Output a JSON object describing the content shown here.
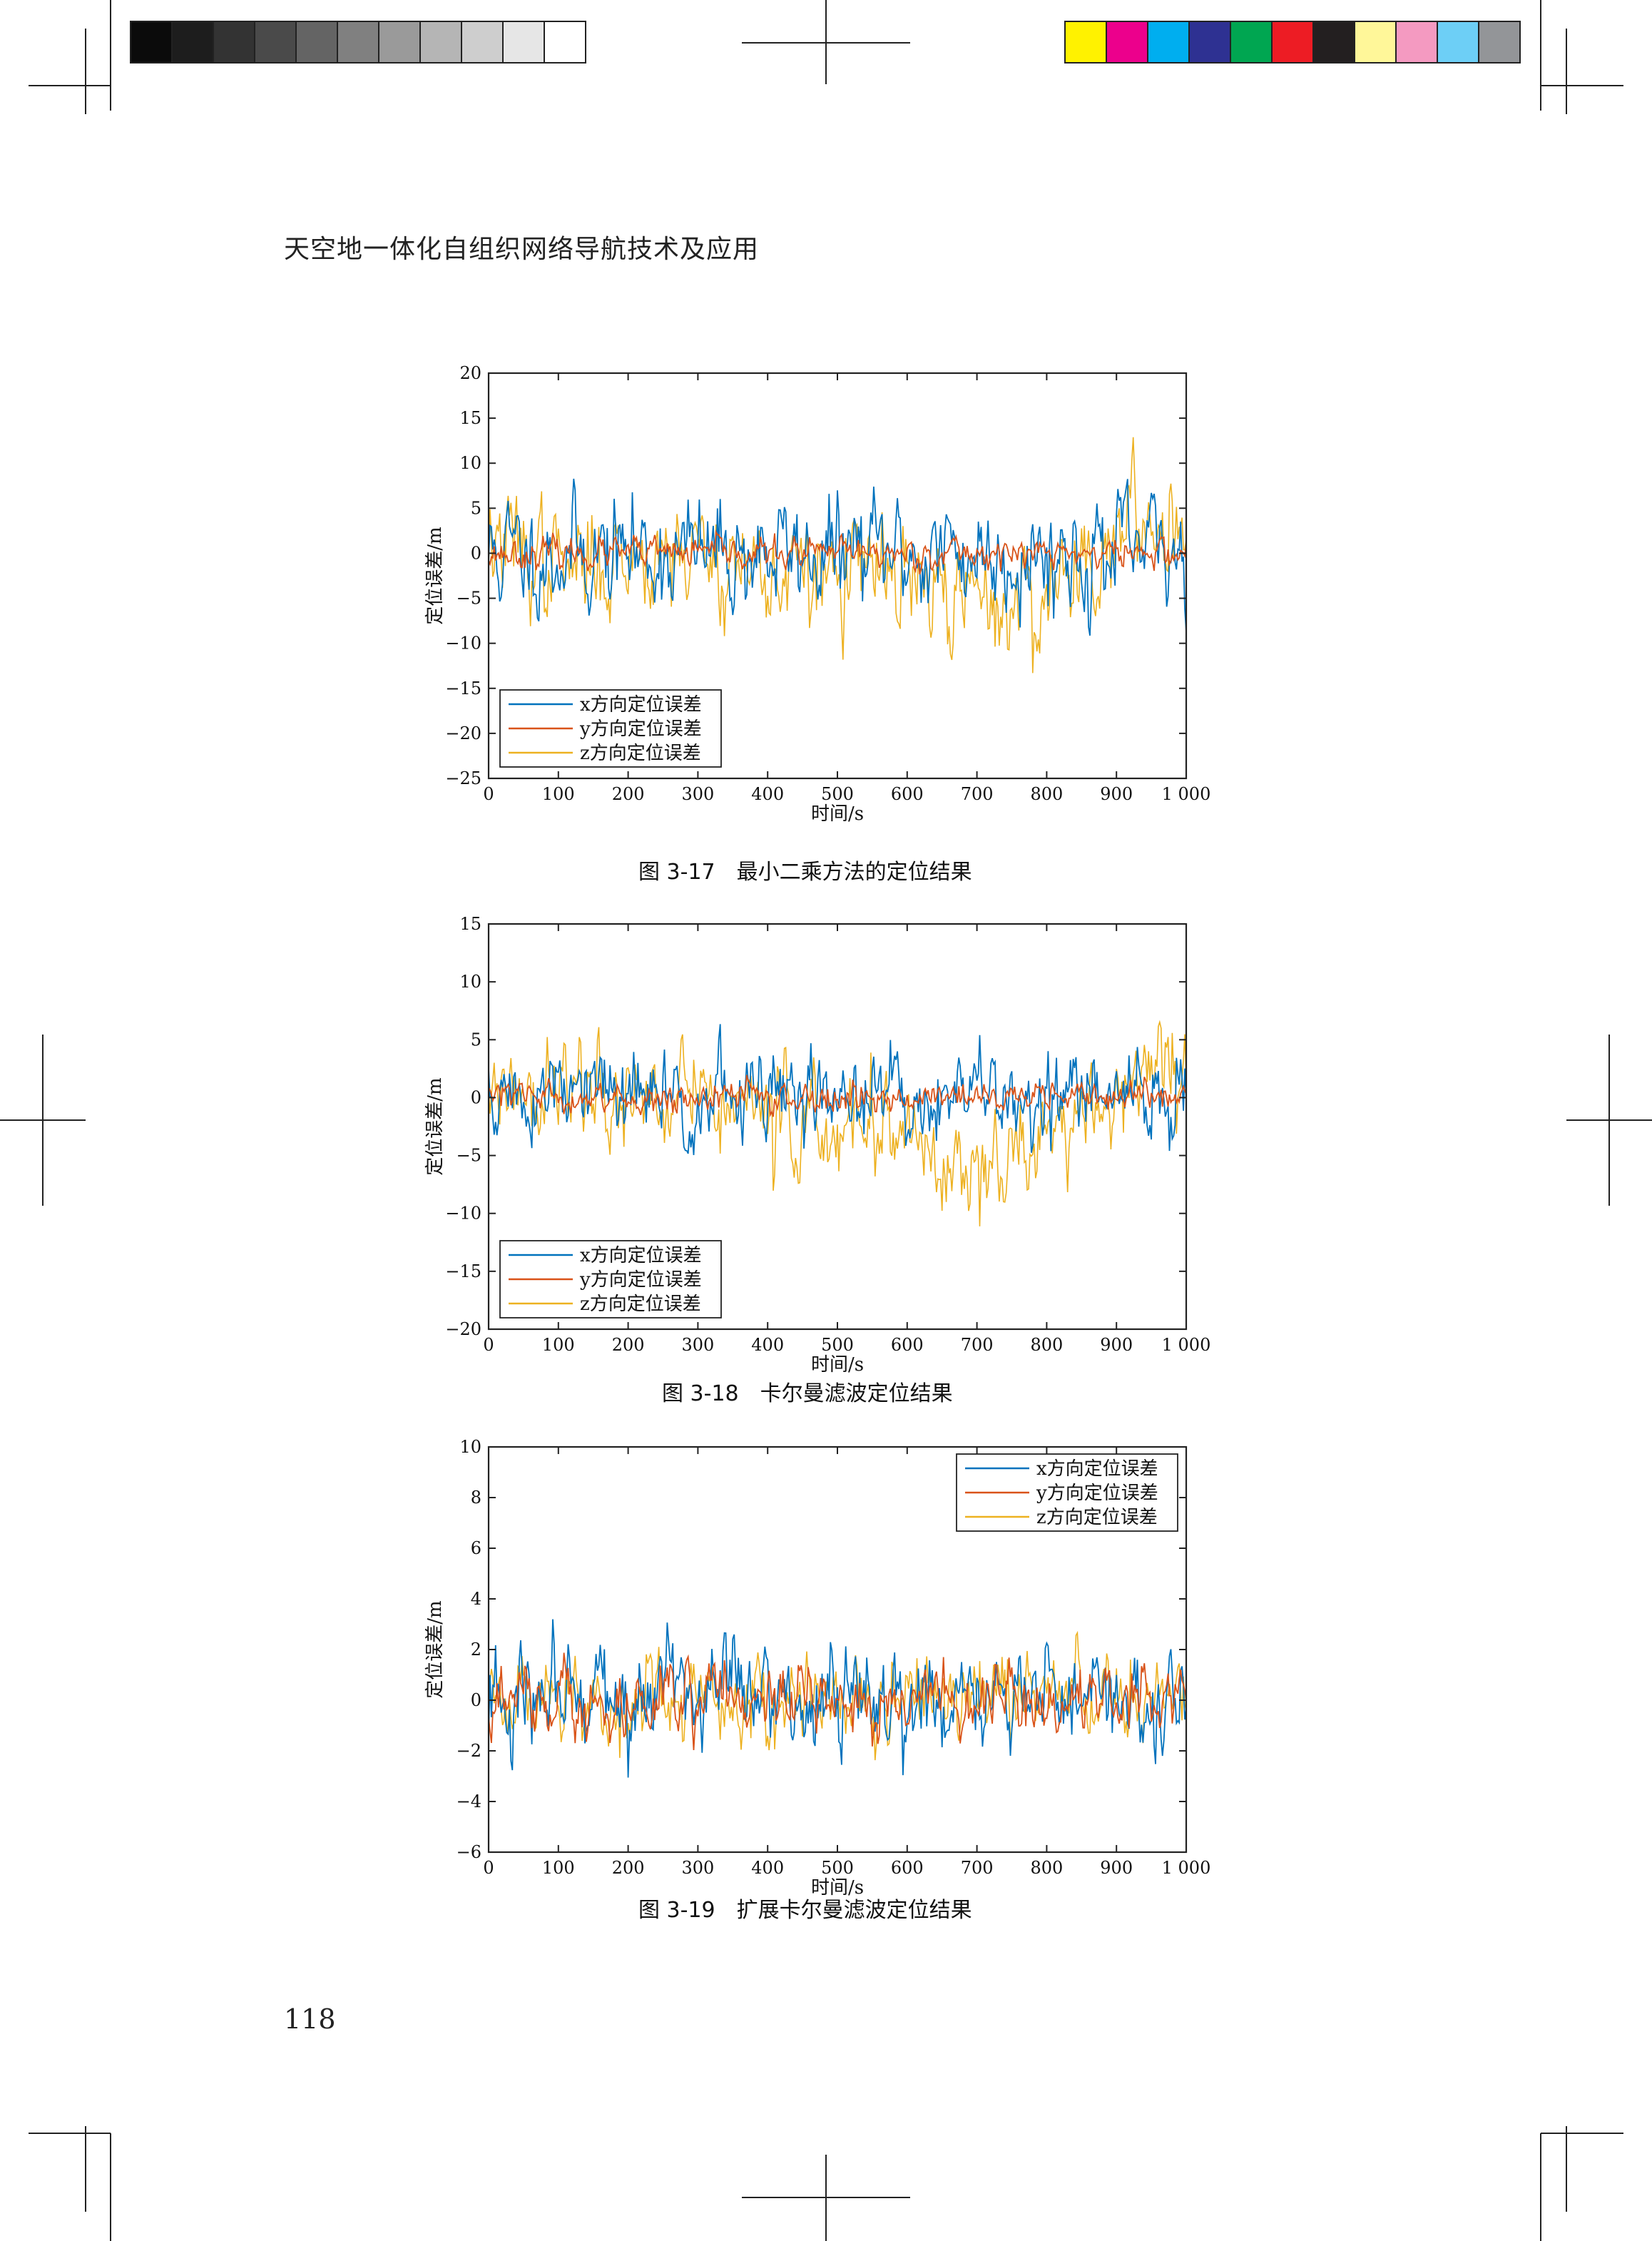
{
  "page": {
    "header": "天空地一体化自组织网络导航技术及应用",
    "page_number": "118"
  },
  "registration": {
    "gray_swatches": [
      "#0b0b0b",
      "#1d1d1d",
      "#333333",
      "#4a4a4a",
      "#646464",
      "#808080",
      "#9a9a9a",
      "#b5b5b5",
      "#cecece",
      "#e6e6e6",
      "#ffffff"
    ],
    "color_swatches": [
      "#fff200",
      "#ec008c",
      "#00aeef",
      "#2e3192",
      "#00a651",
      "#ed1c24",
      "#231f20",
      "#fff799",
      "#f49ac1",
      "#6dcff6",
      "#939598"
    ]
  },
  "colors": {
    "x": "#0072bd",
    "y": "#d95319",
    "z": "#edb120"
  },
  "chart_data": [
    {
      "type": "line",
      "caption": "图 3-17　最小二乘方法的定位结果",
      "xlabel": "时间/s",
      "ylabel": "定位误差/m",
      "xlim": [
        0,
        1000
      ],
      "ylim": [
        -25,
        20
      ],
      "xticks": [
        0,
        100,
        200,
        300,
        400,
        500,
        600,
        700,
        800,
        900,
        1000
      ],
      "xtick_labels": [
        "0",
        "100",
        "200",
        "300",
        "400",
        "500",
        "600",
        "700",
        "800",
        "900",
        "1 000"
      ],
      "yticks": [
        20,
        15,
        10,
        5,
        0,
        -5,
        -10,
        -15,
        -20,
        -25
      ],
      "ytick_labels": [
        "20",
        "15",
        "10",
        "5",
        "0",
        "−5",
        "−10",
        "−15",
        "−20",
        "−25"
      ],
      "legend": {
        "position": "bottom-left",
        "entries": [
          "x方向定位误差",
          "y方向定位误差",
          "z方向定位误差"
        ]
      },
      "series": [
        {
          "name": "x方向定位误差",
          "amp": 6.0,
          "bias": [
            [
              0,
              0
            ],
            [
              1000,
              0
            ]
          ],
          "seed": 11
        },
        {
          "name": "y方向定位误差",
          "amp": 1.6,
          "bias": [
            [
              0,
              0
            ],
            [
              1000,
              0
            ]
          ],
          "seed": 23
        },
        {
          "name": "z方向定位误差",
          "amp": 6.0,
          "bias": [
            [
              0,
              1.5
            ],
            [
              120,
              -2
            ],
            [
              250,
              1
            ],
            [
              350,
              -1
            ],
            [
              450,
              -3
            ],
            [
              550,
              -2
            ],
            [
              650,
              -5
            ],
            [
              780,
              -6
            ],
            [
              860,
              0
            ],
            [
              940,
              3
            ],
            [
              1000,
              5
            ]
          ],
          "seed": 37
        }
      ]
    },
    {
      "type": "line",
      "caption": "图 3-18　卡尔曼滤波定位结果",
      "xlabel": "时间/s",
      "ylabel": "定位误差/m",
      "xlim": [
        0,
        1000
      ],
      "ylim": [
        -20,
        15
      ],
      "xticks": [
        0,
        100,
        200,
        300,
        400,
        500,
        600,
        700,
        800,
        900,
        1000
      ],
      "xtick_labels": [
        "0",
        "100",
        "200",
        "300",
        "400",
        "500",
        "600",
        "700",
        "800",
        "900",
        "1 000"
      ],
      "yticks": [
        15,
        10,
        5,
        0,
        -5,
        -10,
        -15,
        -20
      ],
      "ytick_labels": [
        "15",
        "10",
        "5",
        "0",
        "−5",
        "−10",
        "−15",
        "−20"
      ],
      "legend": {
        "position": "bottom-left",
        "entries": [
          "x方向定位误差",
          "y方向定位误差",
          "z方向定位误差"
        ]
      },
      "series": [
        {
          "name": "x方向定位误差",
          "amp": 4.0,
          "bias": [
            [
              0,
              0
            ],
            [
              1000,
              0
            ]
          ],
          "seed": 51
        },
        {
          "name": "y方向定位误差",
          "amp": 1.2,
          "bias": [
            [
              0,
              0
            ],
            [
              1000,
              0
            ]
          ],
          "seed": 63
        },
        {
          "name": "z方向定位误差",
          "amp": 4.5,
          "bias": [
            [
              0,
              1
            ],
            [
              150,
              0
            ],
            [
              300,
              0
            ],
            [
              400,
              -2
            ],
            [
              500,
              -3
            ],
            [
              650,
              -5
            ],
            [
              780,
              -5
            ],
            [
              860,
              -1
            ],
            [
              950,
              3
            ],
            [
              1000,
              4
            ]
          ],
          "seed": 77
        }
      ]
    },
    {
      "type": "line",
      "caption": "图 3-19　扩展卡尔曼滤波定位结果",
      "xlabel": "时间/s",
      "ylabel": "定位误差/m",
      "xlim": [
        0,
        1000
      ],
      "ylim": [
        -6,
        10
      ],
      "xticks": [
        0,
        100,
        200,
        300,
        400,
        500,
        600,
        700,
        800,
        900,
        1000
      ],
      "xtick_labels": [
        "0",
        "100",
        "200",
        "300",
        "400",
        "500",
        "600",
        "700",
        "800",
        "900",
        "1 000"
      ],
      "yticks": [
        10,
        8,
        6,
        4,
        2,
        0,
        -2,
        -4,
        -6
      ],
      "ytick_labels": [
        "10",
        "8",
        "6",
        "4",
        "2",
        "0",
        "−2",
        "−4",
        "−6"
      ],
      "legend": {
        "position": "top-right",
        "entries": [
          "x方向定位误差",
          "y方向定位误差",
          "z方向定位误差"
        ]
      },
      "series": [
        {
          "name": "x方向定位误差",
          "amp": 2.0,
          "bias": [
            [
              0,
              0
            ],
            [
              1000,
              0
            ]
          ],
          "seed": 91
        },
        {
          "name": "y方向定位误差",
          "amp": 1.3,
          "bias": [
            [
              0,
              0
            ],
            [
              1000,
              0
            ]
          ],
          "seed": 103
        },
        {
          "name": "z方向定位误差",
          "amp": 1.6,
          "bias": [
            [
              0,
              0
            ],
            [
              1000,
              0
            ]
          ],
          "seed": 117
        }
      ]
    }
  ]
}
